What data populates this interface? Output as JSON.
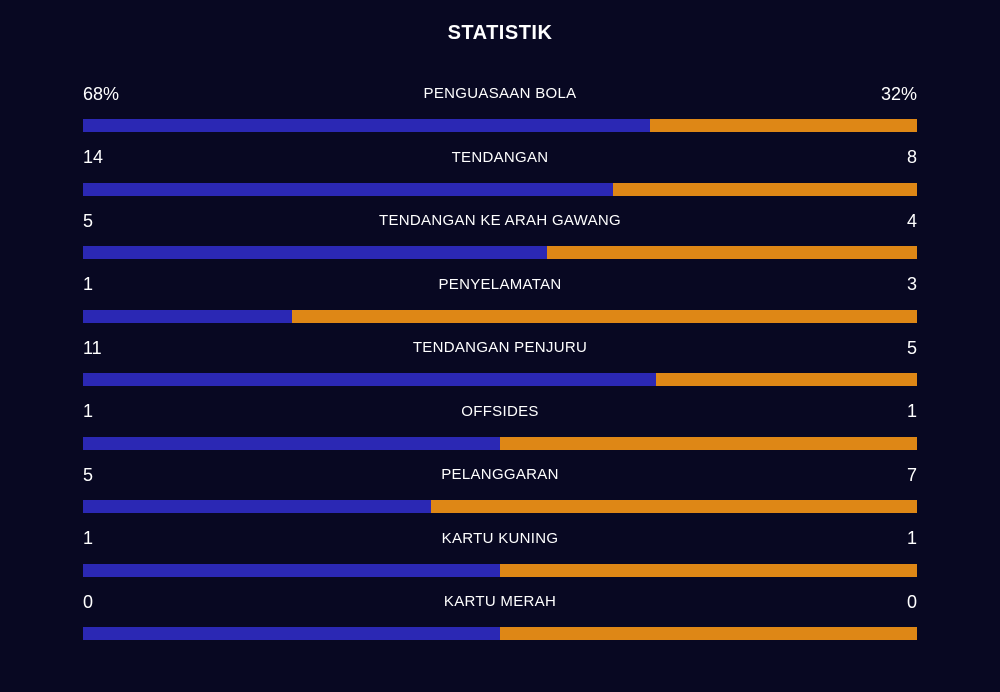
{
  "title": "STATISTIK",
  "colors": {
    "home": "#2b28b4",
    "away": "#de8716",
    "background": "#080822"
  },
  "stats": [
    {
      "label": "PENGUASAAN BOLA",
      "home": "68%",
      "away": "32%",
      "home_share": 0.68
    },
    {
      "label": "TENDANGAN",
      "home": "14",
      "away": "8",
      "home_share": 0.636
    },
    {
      "label": "TENDANGAN KE ARAH GAWANG",
      "home": "5",
      "away": "4",
      "home_share": 0.556
    },
    {
      "label": "PENYELAMATAN",
      "home": "1",
      "away": "3",
      "home_share": 0.25
    },
    {
      "label": "TENDANGAN PENJURU",
      "home": "11",
      "away": "5",
      "home_share": 0.6875
    },
    {
      "label": "OFFSIDES",
      "home": "1",
      "away": "1",
      "home_share": 0.5
    },
    {
      "label": "PELANGGARAN",
      "home": "5",
      "away": "7",
      "home_share": 0.417
    },
    {
      "label": "KARTU KUNING",
      "home": "1",
      "away": "1",
      "home_share": 0.5
    },
    {
      "label": "KARTU MERAH",
      "home": "0",
      "away": "0",
      "home_share": 0.5
    }
  ]
}
